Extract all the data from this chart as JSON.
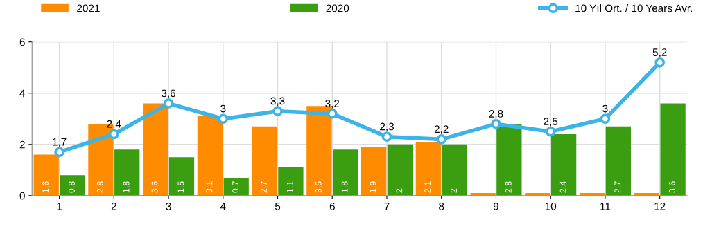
{
  "chart_data": {
    "type": "bar",
    "categories": [
      "1",
      "2",
      "3",
      "4",
      "5",
      "6",
      "7",
      "8",
      "9",
      "10",
      "11",
      "12"
    ],
    "series": [
      {
        "name": "2021",
        "color": "#ff8c00",
        "values": [
          1.6,
          2.8,
          3.6,
          3.1,
          2.7,
          3.5,
          1.9,
          2.1,
          0.1,
          0.1,
          0.1,
          0.1
        ],
        "value_labels": [
          "1,6",
          "2,8",
          "3,6",
          "3,1",
          "2,7",
          "3,5",
          "1,9",
          "2,1",
          null,
          null,
          null,
          null
        ]
      },
      {
        "name": "2020",
        "color": "#3a9e10",
        "values": [
          0.8,
          1.8,
          1.5,
          0.7,
          1.1,
          1.8,
          2,
          2,
          2.8,
          2.4,
          2.7,
          3.6
        ],
        "value_labels": [
          "0,8",
          "1,8",
          "1,5",
          "0,7",
          "1,1",
          "1,8",
          "2",
          "2",
          "2,8",
          "2,4",
          "2,7",
          "3,6"
        ]
      },
      {
        "name": "10 Yıl Ort. / 10 Years Avr.",
        "type": "line",
        "color": "#3db4e8",
        "marker": "circle",
        "values": [
          1.7,
          2.4,
          3.6,
          3,
          3.3,
          3.2,
          2.3,
          2.2,
          2.8,
          2.5,
          3,
          5.2
        ],
        "value_labels": [
          "1,7",
          "2,4",
          "3,6",
          "3",
          "3,3",
          "3,2",
          "2,3",
          "2,2",
          "2,8",
          "2,5",
          "3",
          "5,2"
        ]
      }
    ],
    "ylim": [
      0,
      6
    ],
    "yticks": [
      0,
      2,
      4,
      6
    ],
    "grid": true,
    "legend": "top"
  }
}
